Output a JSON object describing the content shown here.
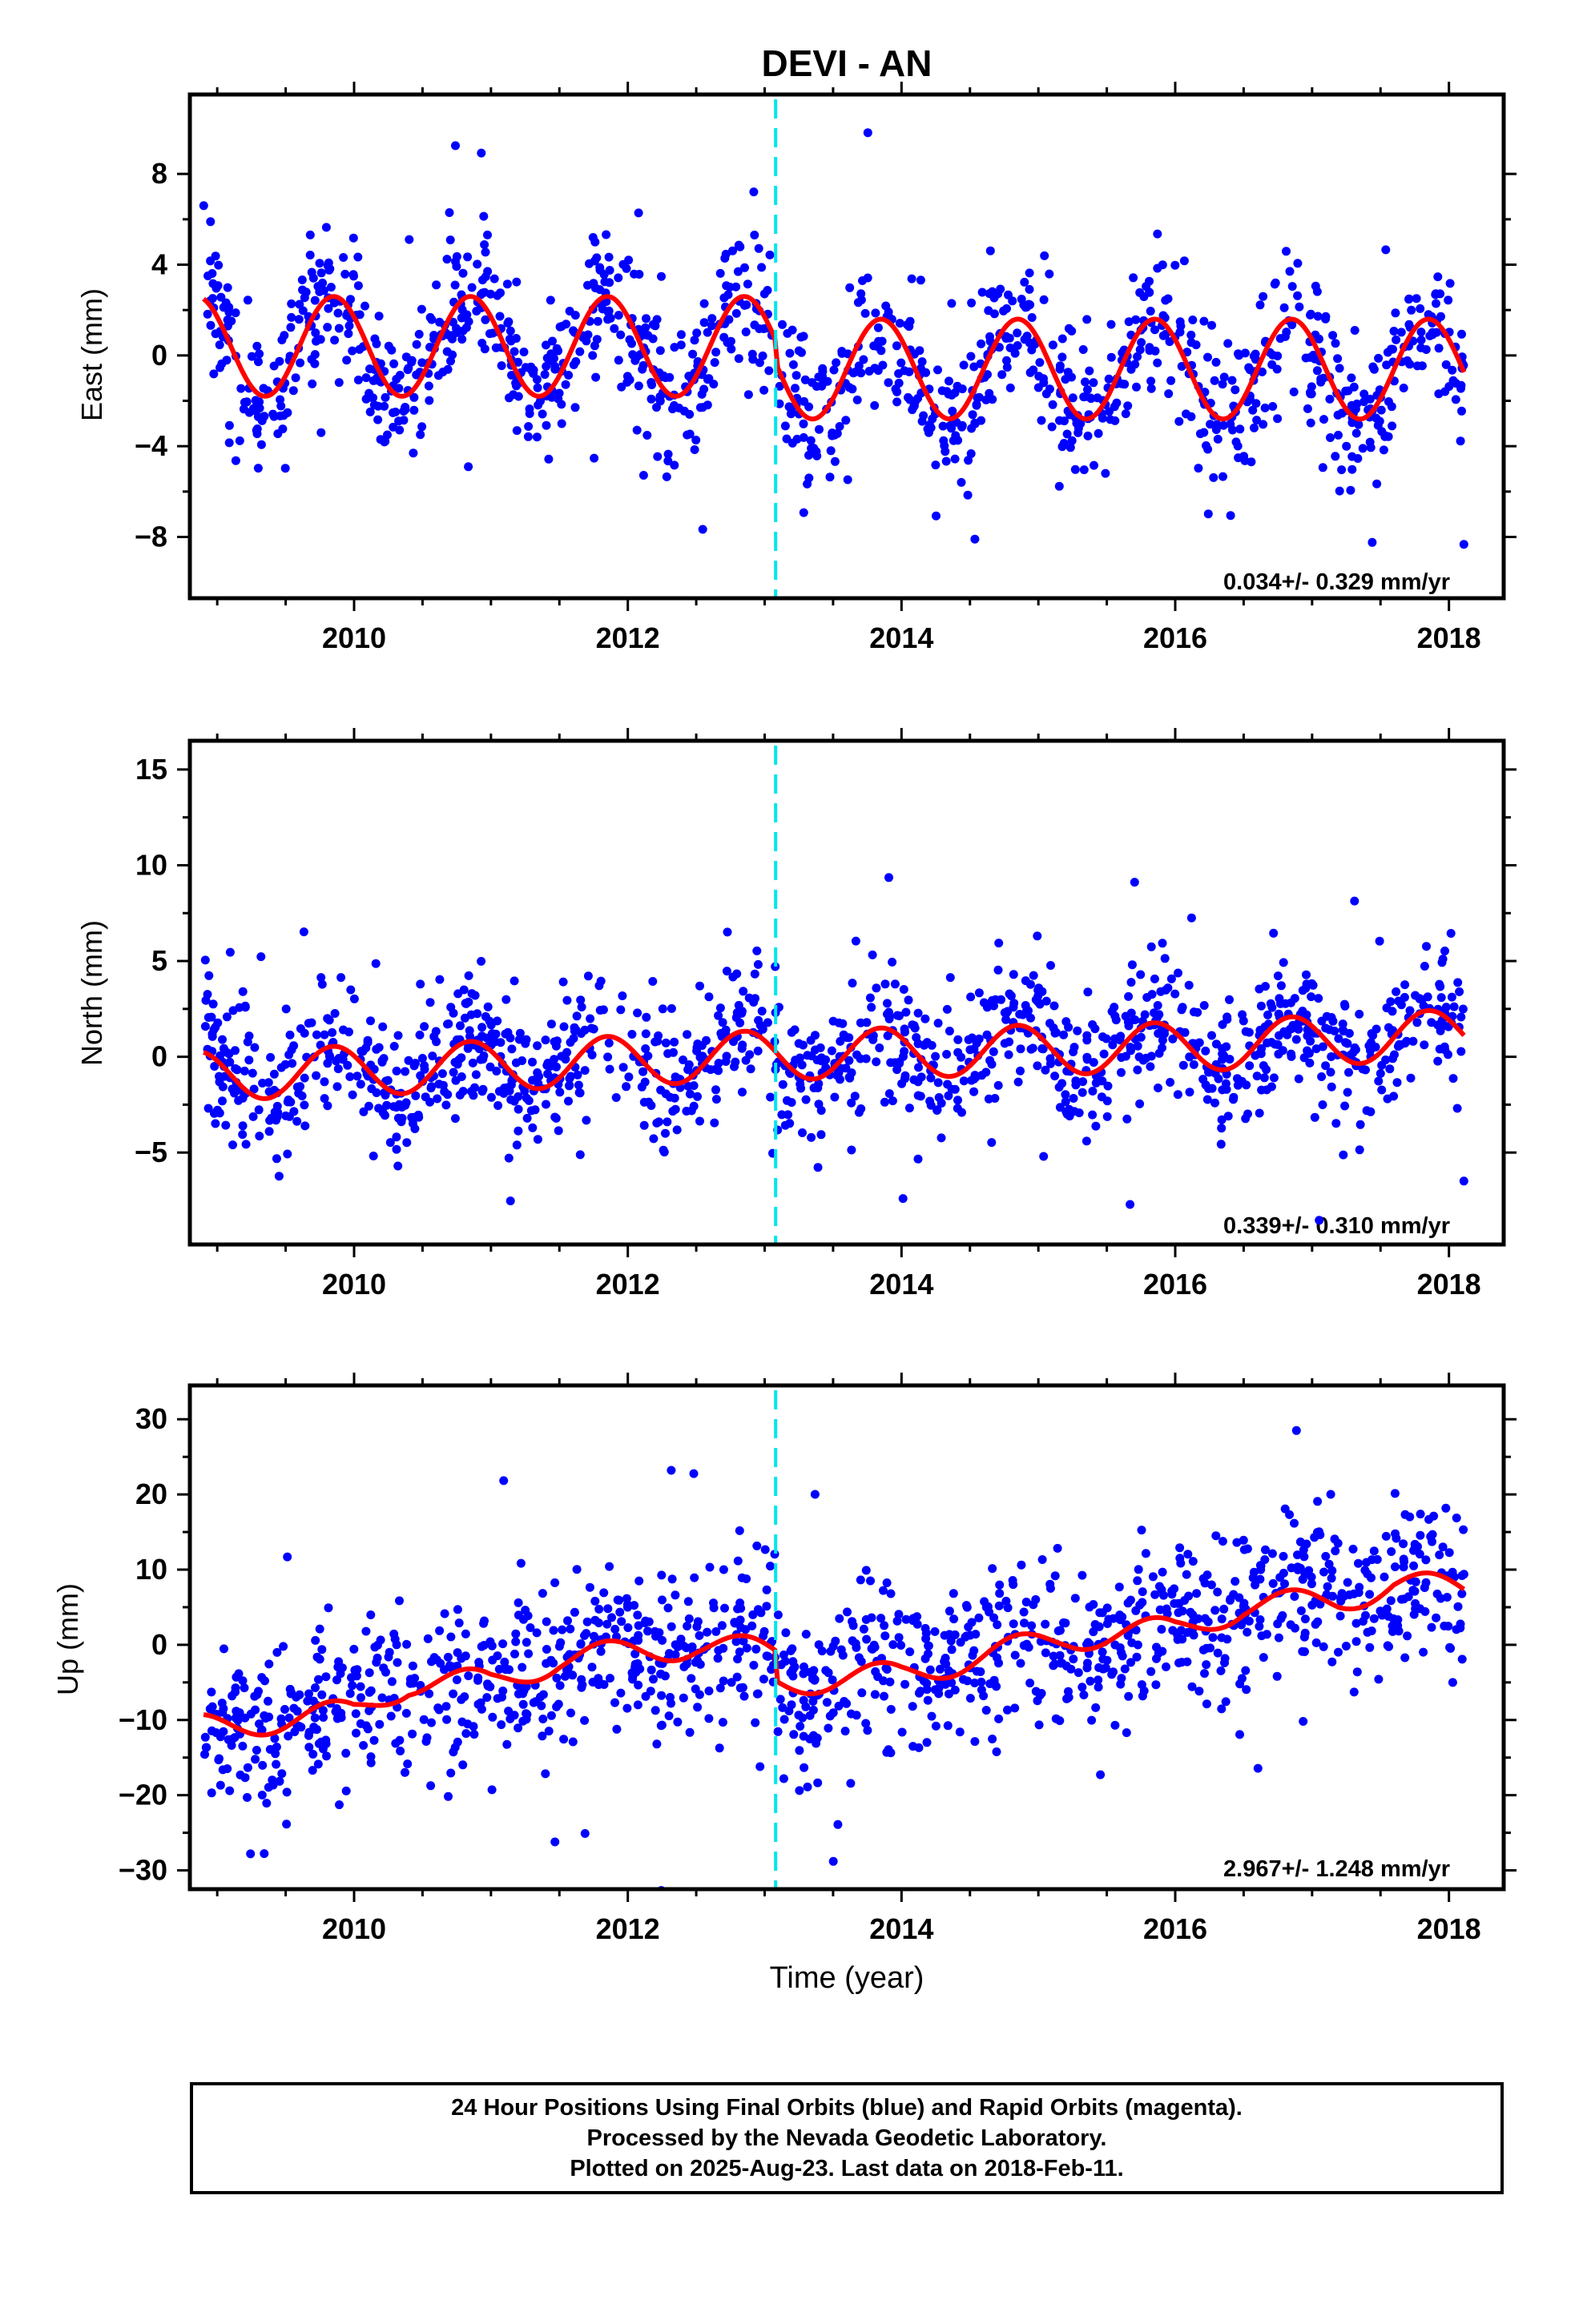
{
  "title": "DEVI - AN",
  "colors": {
    "points": "#0000ff",
    "fit": "#ff0000",
    "event_line": "#00e5ee",
    "frame": "#000000"
  },
  "x_axis_label": "Time (year)",
  "footer": {
    "line1": "24 Hour Positions Using Final Orbits (blue) and Rapid Orbits (magenta).",
    "line2": "Processed by the Nevada Geodetic Laboratory.",
    "line3": "Plotted on 2025-Aug-23. Last data on 2018-Feb-11."
  },
  "chart_data": [
    {
      "type": "scatter",
      "component": "east",
      "ylabel": "East (mm)",
      "rate_label": "0.034+/- 0.329 mm/yr",
      "xlim": [
        2008.8,
        2018.4
      ],
      "ylim": [
        -10.7,
        11.5
      ],
      "xticks": [
        2010,
        2012,
        2014,
        2016,
        2018
      ],
      "yticks": [
        -8,
        -4,
        0,
        4,
        8
      ],
      "event_line_x": 2013.08,
      "series": [
        {
          "name": "",
          "kind": "points",
          "data_start": 2008.9,
          "data_end": 2018.11,
          "amplitude_mm": 2.2,
          "scatter_mm": 1.6,
          "trend": [
            [
              2008.9,
              0.4
            ],
            [
              2013.08,
              0.4
            ],
            [
              2013.09,
              -0.6
            ],
            [
              2018.11,
              -0.6
            ]
          ]
        },
        {
          "name": "",
          "kind": "fit",
          "amplitude_mm": 2.2,
          "trend": [
            [
              2008.9,
              0.4
            ],
            [
              2013.08,
              0.4
            ],
            [
              2013.09,
              -0.6
            ],
            [
              2018.11,
              -0.6
            ]
          ]
        }
      ]
    },
    {
      "type": "scatter",
      "component": "north",
      "ylabel": "North (mm)",
      "rate_label": "0.339+/- 0.310 mm/yr",
      "xlim": [
        2008.8,
        2018.4
      ],
      "ylim": [
        -9.8,
        16.5
      ],
      "xticks": [
        2010,
        2012,
        2014,
        2016,
        2018
      ],
      "yticks": [
        -5,
        0,
        5,
        10,
        15
      ],
      "event_line_x": 2013.08,
      "series": [
        {
          "name": "",
          "kind": "points",
          "data_start": 2008.9,
          "data_end": 2018.11,
          "amplitude_mm": 1.3,
          "scatter_mm": 1.8,
          "trend": [
            [
              2008.9,
              -1.0
            ],
            [
              2012.0,
              -0.2
            ],
            [
              2013.08,
              0.1
            ],
            [
              2016.0,
              0.5
            ],
            [
              2018.11,
              1.2
            ]
          ]
        },
        {
          "name": "",
          "kind": "fit",
          "amplitude_mm": 1.3,
          "trend": [
            [
              2008.9,
              -1.0
            ],
            [
              2012.0,
              -0.2
            ],
            [
              2013.08,
              0.1
            ],
            [
              2016.0,
              0.5
            ],
            [
              2018.11,
              1.2
            ]
          ]
        }
      ]
    },
    {
      "type": "scatter",
      "component": "up",
      "ylabel": "Up (mm)",
      "rate_label": "2.967+/- 1.248 mm/yr",
      "xlim": [
        2008.8,
        2018.4
      ],
      "ylim": [
        -32.5,
        34.5
      ],
      "xticks": [
        2010,
        2012,
        2014,
        2016,
        2018
      ],
      "yticks": [
        -30,
        -20,
        -10,
        0,
        10,
        20,
        30
      ],
      "event_line_x": 2013.08,
      "series": [
        {
          "name": "",
          "kind": "points",
          "data_start": 2008.9,
          "data_end": 2018.11,
          "amplitude_mm": 1.8,
          "scatter_mm": 5.5,
          "trend": [
            [
              2008.9,
              -11.0
            ],
            [
              2010.0,
              -9.0
            ],
            [
              2010.4,
              -5.0
            ],
            [
              2011.0,
              -5.0
            ],
            [
              2011.5,
              -2.0
            ],
            [
              2012.5,
              0.0
            ],
            [
              2013.08,
              -1.0
            ],
            [
              2013.09,
              -5.0
            ],
            [
              2014.0,
              -4.0
            ],
            [
              2015.2,
              1.0
            ],
            [
              2016.0,
              2.0
            ],
            [
              2016.5,
              5.0
            ],
            [
              2017.2,
              6.0
            ],
            [
              2017.6,
              8.0
            ],
            [
              2018.11,
              7.5
            ]
          ]
        },
        {
          "name": "",
          "kind": "fit",
          "amplitude_mm": 1.8,
          "trend": [
            [
              2008.9,
              -11.0
            ],
            [
              2010.0,
              -9.0
            ],
            [
              2010.4,
              -5.0
            ],
            [
              2011.0,
              -5.0
            ],
            [
              2011.5,
              -2.0
            ],
            [
              2012.5,
              0.0
            ],
            [
              2013.08,
              -1.0
            ],
            [
              2013.09,
              -5.0
            ],
            [
              2014.0,
              -4.0
            ],
            [
              2015.2,
              1.0
            ],
            [
              2016.0,
              2.0
            ],
            [
              2016.5,
              5.0
            ],
            [
              2017.2,
              6.0
            ],
            [
              2017.6,
              8.0
            ],
            [
              2018.11,
              7.5
            ]
          ]
        }
      ]
    }
  ]
}
